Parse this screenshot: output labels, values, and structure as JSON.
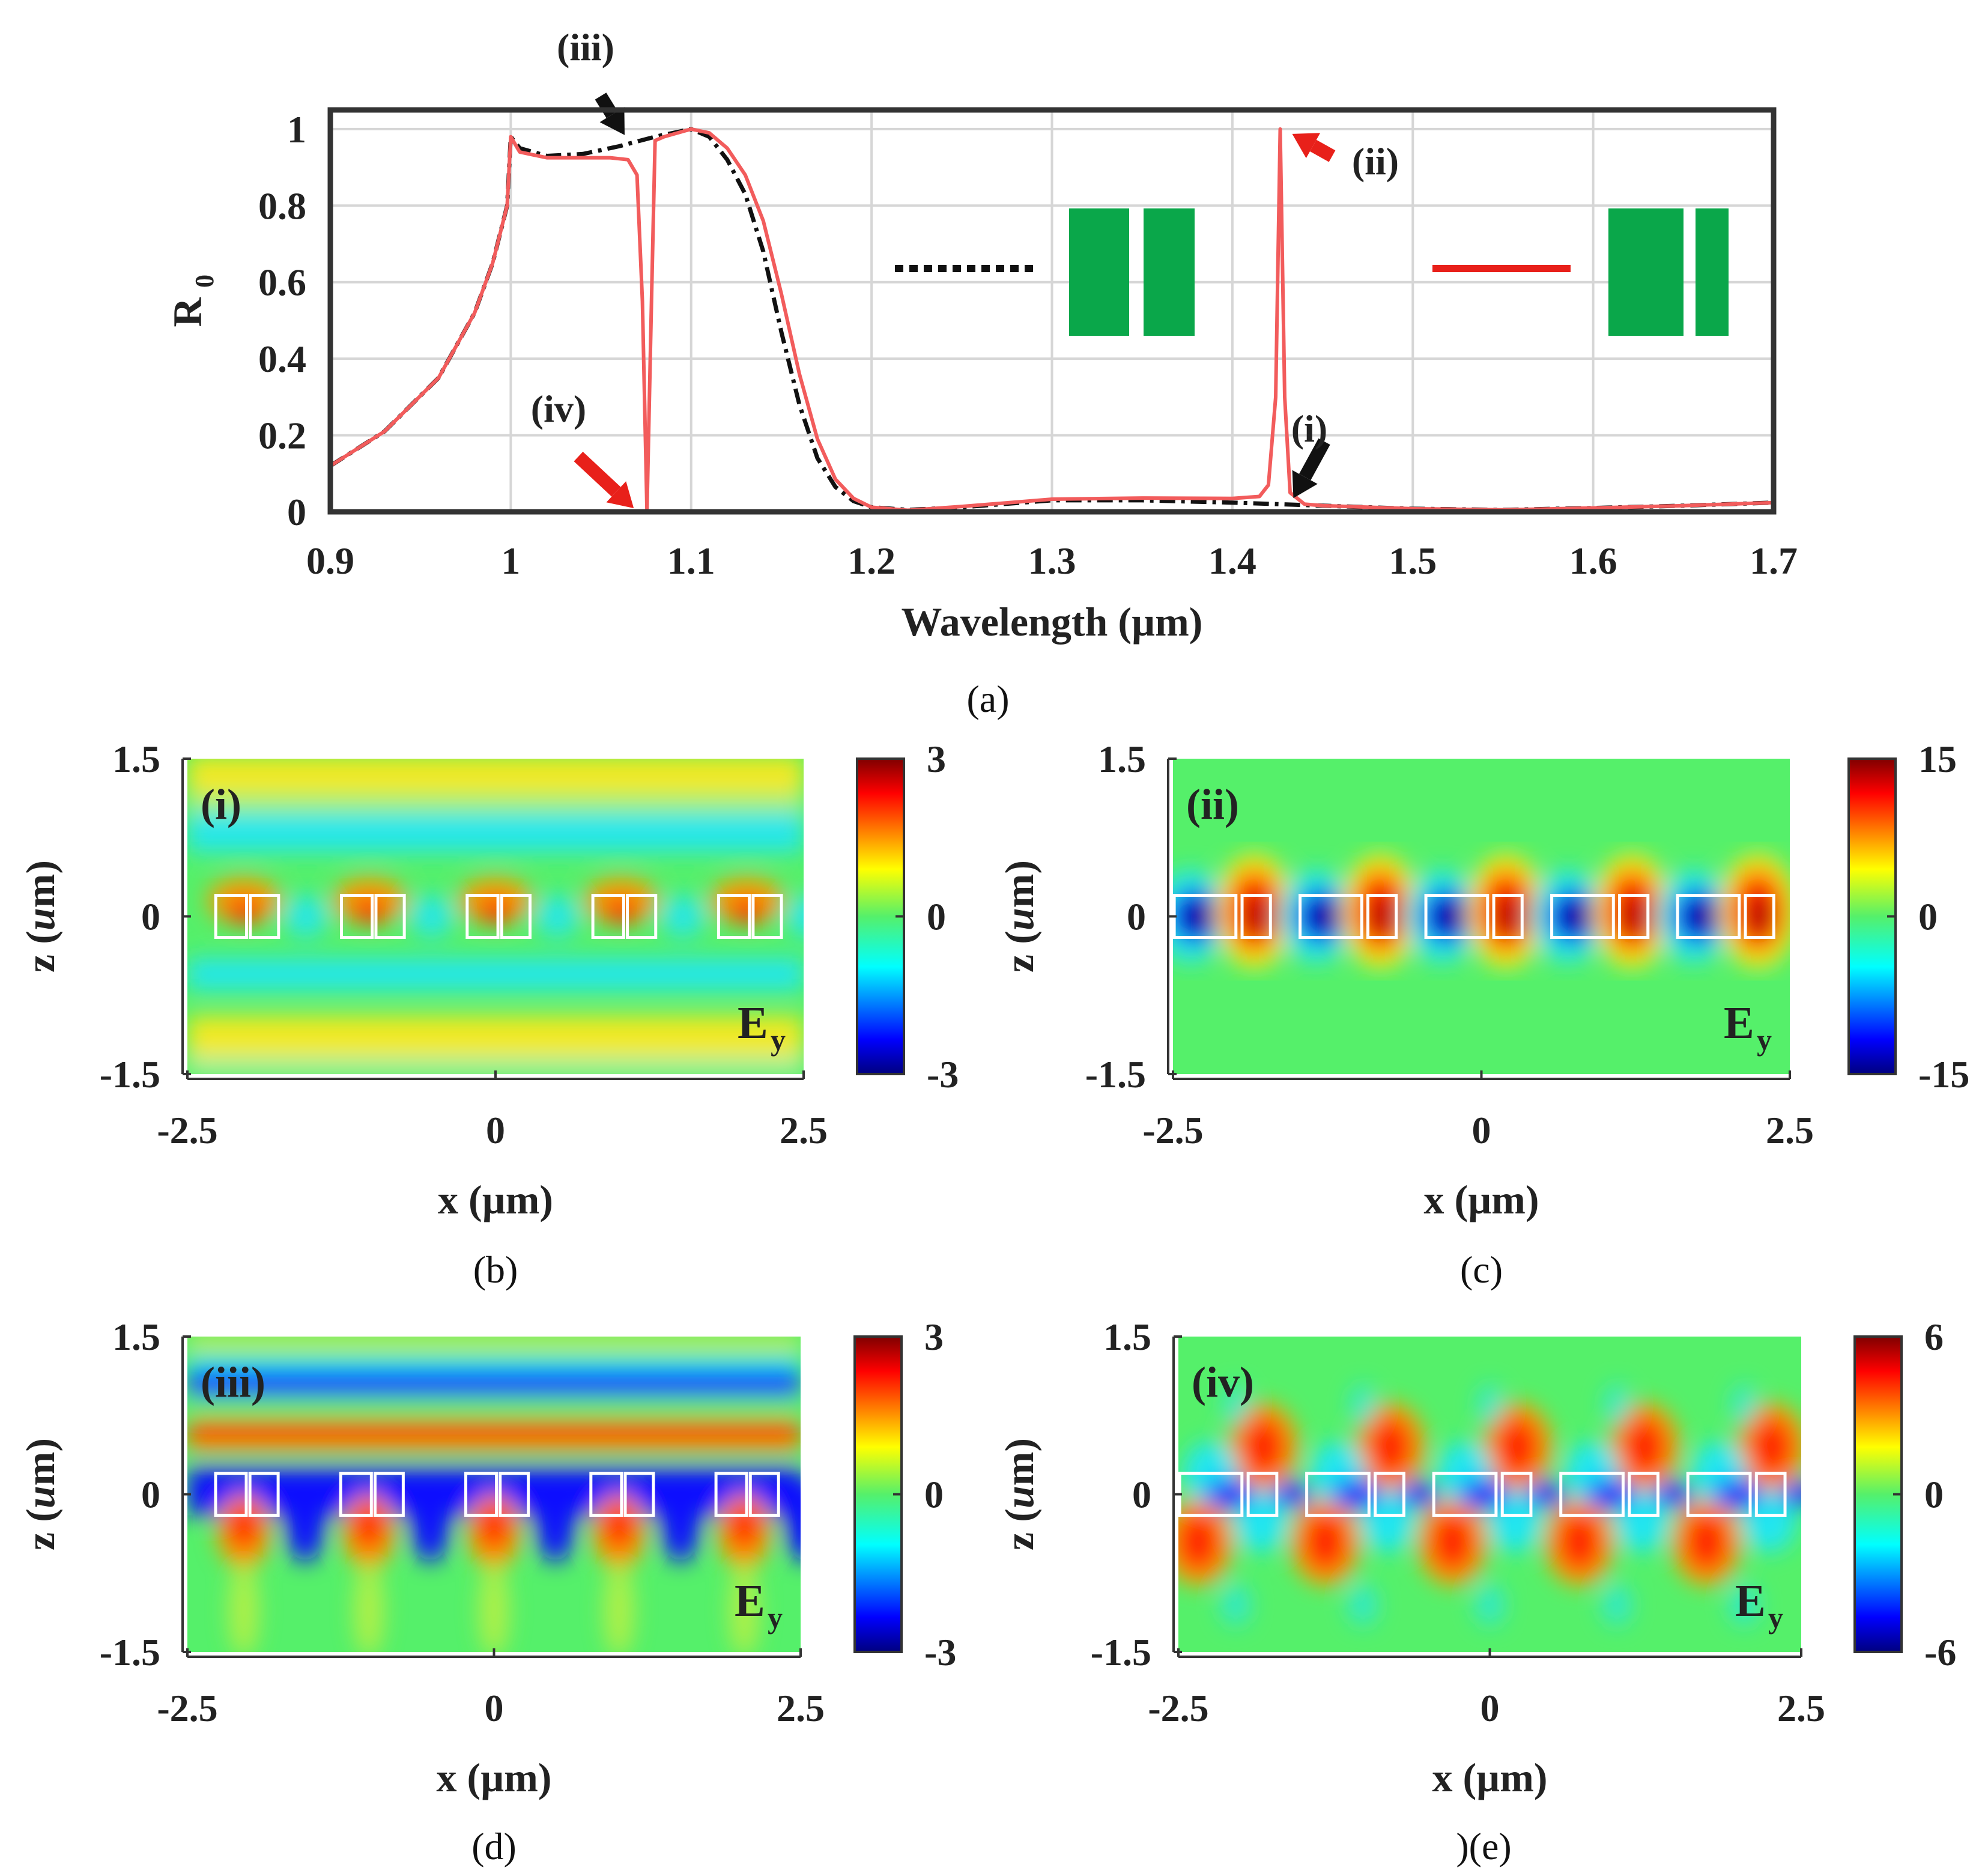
{
  "chart_data": [
    {
      "id": "a",
      "type": "line",
      "caption": "(a)",
      "xlabel": "Wavelength (µm)",
      "ylabel": "R",
      "ylabel_sub": "0",
      "xlim": [
        0.9,
        1.7
      ],
      "ylim": [
        0,
        1.05
      ],
      "xticks": [
        0.9,
        1.0,
        1.1,
        1.2,
        1.3,
        1.4,
        1.5,
        1.6,
        1.7
      ],
      "xtick_labels": [
        "0.9",
        "1",
        "1.1",
        "1.2",
        "1.3",
        "1.4",
        "1.5",
        "1.6",
        "1.7"
      ],
      "yticks": [
        0,
        0.2,
        0.4,
        0.6,
        0.8,
        1.0
      ],
      "ytick_labels": [
        "0",
        "0.2",
        "0.4",
        "0.6",
        "0.8",
        "1"
      ],
      "grid": true,
      "legend_placement": "inside, top-right",
      "series": [
        {
          "name": "symmetric pair (equal bars)",
          "color": "#111111",
          "style": "dash-dot",
          "points": [
            [
              0.9,
              0.12
            ],
            [
              0.93,
              0.21
            ],
            [
              0.96,
              0.35
            ],
            [
              0.98,
              0.52
            ],
            [
              0.99,
              0.65
            ],
            [
              0.998,
              0.8
            ],
            [
              1.0,
              0.98
            ],
            [
              1.005,
              0.95
            ],
            [
              1.02,
              0.93
            ],
            [
              1.04,
              0.935
            ],
            [
              1.06,
              0.955
            ],
            [
              1.08,
              0.98
            ],
            [
              1.1,
              1.0
            ],
            [
              1.11,
              0.98
            ],
            [
              1.12,
              0.92
            ],
            [
              1.13,
              0.83
            ],
            [
              1.14,
              0.68
            ],
            [
              1.15,
              0.47
            ],
            [
              1.16,
              0.28
            ],
            [
              1.17,
              0.14
            ],
            [
              1.18,
              0.065
            ],
            [
              1.19,
              0.028
            ],
            [
              1.2,
              0.012
            ],
            [
              1.22,
              0.005
            ],
            [
              1.25,
              0.012
            ],
            [
              1.3,
              0.03
            ],
            [
              1.35,
              0.03
            ],
            [
              1.4,
              0.024
            ],
            [
              1.45,
              0.016
            ],
            [
              1.5,
              0.008
            ],
            [
              1.55,
              0.005
            ],
            [
              1.6,
              0.01
            ],
            [
              1.65,
              0.016
            ],
            [
              1.7,
              0.024
            ]
          ]
        },
        {
          "name": "asymmetric pair (unequal bars)",
          "color": "#f25c5c",
          "style": "solid",
          "points": [
            [
              0.9,
              0.12
            ],
            [
              0.93,
              0.21
            ],
            [
              0.96,
              0.35
            ],
            [
              0.98,
              0.52
            ],
            [
              0.99,
              0.65
            ],
            [
              0.998,
              0.8
            ],
            [
              1.0,
              0.98
            ],
            [
              1.005,
              0.94
            ],
            [
              1.02,
              0.925
            ],
            [
              1.04,
              0.925
            ],
            [
              1.055,
              0.925
            ],
            [
              1.065,
              0.92
            ],
            [
              1.07,
              0.88
            ],
            [
              1.073,
              0.55
            ],
            [
              1.0755,
              0.0
            ],
            [
              1.078,
              0.55
            ],
            [
              1.08,
              0.97
            ],
            [
              1.085,
              0.98
            ],
            [
              1.1,
              1.0
            ],
            [
              1.11,
              0.99
            ],
            [
              1.12,
              0.95
            ],
            [
              1.13,
              0.88
            ],
            [
              1.14,
              0.76
            ],
            [
              1.15,
              0.57
            ],
            [
              1.16,
              0.36
            ],
            [
              1.17,
              0.19
            ],
            [
              1.18,
              0.085
            ],
            [
              1.19,
              0.035
            ],
            [
              1.2,
              0.012
            ],
            [
              1.22,
              0.004
            ],
            [
              1.25,
              0.014
            ],
            [
              1.3,
              0.033
            ],
            [
              1.35,
              0.036
            ],
            [
              1.4,
              0.035
            ],
            [
              1.415,
              0.04
            ],
            [
              1.42,
              0.07
            ],
            [
              1.424,
              0.3
            ],
            [
              1.4265,
              1.0
            ],
            [
              1.429,
              0.3
            ],
            [
              1.432,
              0.05
            ],
            [
              1.44,
              0.02
            ],
            [
              1.45,
              0.016
            ],
            [
              1.5,
              0.008
            ],
            [
              1.55,
              0.005
            ],
            [
              1.6,
              0.01
            ],
            [
              1.65,
              0.016
            ],
            [
              1.7,
              0.024
            ]
          ]
        }
      ],
      "annotations": [
        {
          "label": "(iii)",
          "x": 1.065,
          "y": 0.975,
          "arrow_color": "#111111"
        },
        {
          "label": "(ii)",
          "x": 1.4265,
          "y": 1.0,
          "arrow_color": "#e8201a"
        },
        {
          "label": "(iv)",
          "x": 1.0755,
          "y": 0.0,
          "arrow_color": "#e8201a"
        },
        {
          "label": "(i)",
          "x": 1.4265,
          "y": 0.02,
          "arrow_color": "#111111"
        }
      ],
      "legend_insets": [
        {
          "line_style": "dotted",
          "line_color": "#111111",
          "bar_color": "#0aa74a",
          "bar_widths": [
            1.0,
            0.85
          ]
        },
        {
          "line_style": "solid",
          "line_color": "#e8201a",
          "bar_color": "#0aa74a",
          "bar_widths": [
            1.25,
            0.55
          ]
        }
      ]
    },
    {
      "id": "b",
      "type": "heatmap",
      "caption": "(b)",
      "mode": "(i)",
      "field": "E",
      "field_sub": "y",
      "xlabel": "x (µm)",
      "ylabel": "z (",
      "ylabel_italic": "u",
      "ylabel_end": "m)",
      "xlim": [
        -2.5,
        2.5
      ],
      "zlim": [
        -1.5,
        1.5
      ],
      "xtick_labels": [
        "-2.5",
        "0",
        "2.5"
      ],
      "ytick_labels": [
        "1.5",
        "0",
        "-1.5"
      ],
      "colorbar_range": [
        -3,
        3
      ],
      "colorbar_labels": [
        "3",
        "0",
        "-3"
      ]
    },
    {
      "id": "c",
      "type": "heatmap",
      "caption": "(c)",
      "mode": "(ii)",
      "field": "E",
      "field_sub": "y",
      "xlabel": "x (µm)",
      "ylabel": "z (",
      "ylabel_italic": "u",
      "ylabel_end": "m)",
      "xlim": [
        -2.5,
        2.5
      ],
      "zlim": [
        -1.5,
        1.5
      ],
      "xtick_labels": [
        "-2.5",
        "0",
        "2.5"
      ],
      "ytick_labels": [
        "1.5",
        "0",
        "-1.5"
      ],
      "colorbar_range": [
        -15,
        15
      ],
      "colorbar_labels": [
        "15",
        "0",
        "-15"
      ]
    },
    {
      "id": "d",
      "type": "heatmap",
      "caption": "(d)",
      "mode": "(iii)",
      "field": "E",
      "field_sub": "y",
      "xlabel": "x (µm)",
      "ylabel": "z (",
      "ylabel_italic": "u",
      "ylabel_end": "m)",
      "xlim": [
        -2.5,
        2.5
      ],
      "zlim": [
        -1.5,
        1.5
      ],
      "xtick_labels": [
        "-2.5",
        "0",
        "2.5"
      ],
      "ytick_labels": [
        "1.5",
        "0",
        "-1.5"
      ],
      "colorbar_range": [
        -3,
        3
      ],
      "colorbar_labels": [
        "3",
        "0",
        "-3"
      ]
    },
    {
      "id": "e",
      "type": "heatmap",
      "caption": ")(e)",
      "mode": "(iv)",
      "field": "E",
      "field_sub": "y",
      "xlabel": "x (µm)",
      "ylabel": "z (",
      "ylabel_italic": "u",
      "ylabel_end": "m)",
      "xlim": [
        -2.5,
        2.5
      ],
      "zlim": [
        -1.5,
        1.5
      ],
      "xtick_labels": [
        "-2.5",
        "0",
        "2.5"
      ],
      "ytick_labels": [
        "1.5",
        "0",
        "-1.5"
      ],
      "colorbar_range": [
        -6,
        6
      ],
      "colorbar_labels": [
        "6",
        "0",
        "-6"
      ]
    }
  ]
}
